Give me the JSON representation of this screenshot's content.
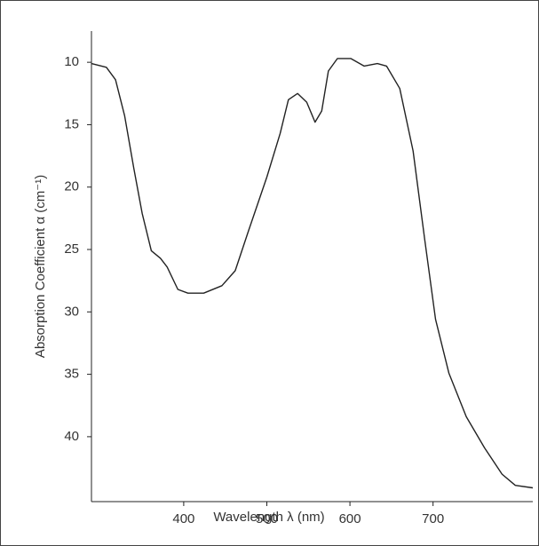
{
  "chart_data": {
    "type": "line",
    "x_label": "Wavelength λ  (nm)",
    "y_label": "Absorption Coefficient α (cm⁻¹)",
    "x": [
      289,
      307,
      318,
      329,
      340,
      350,
      361,
      372,
      380,
      393,
      405,
      424,
      446,
      462,
      478,
      500,
      516,
      526,
      537,
      548,
      558,
      566,
      574,
      585,
      601,
      617,
      633,
      644,
      660,
      676,
      690,
      703,
      719,
      740,
      762,
      783,
      799,
      820
    ],
    "values": [
      10.1,
      10.4,
      11.4,
      14.3,
      18.5,
      22.1,
      25.1,
      25.7,
      26.4,
      28.2,
      28.5,
      28.5,
      27.9,
      26.7,
      23.5,
      19.2,
      15.7,
      13.0,
      12.5,
      13.2,
      14.8,
      13.9,
      10.7,
      9.7,
      9.7,
      10.3,
      10.1,
      10.3,
      12.1,
      17.1,
      24.2,
      30.6,
      34.9,
      38.4,
      40.9,
      43.0,
      43.9,
      44.1
    ],
    "color": "#222222",
    "xlim": [
      289,
      820
    ],
    "xticks": [
      400,
      500,
      600,
      700
    ],
    "ylim": [
      7.5,
      45.2
    ],
    "yticks": [
      10,
      15,
      20,
      25,
      30,
      35,
      40
    ],
    "y_inverted": true
  }
}
